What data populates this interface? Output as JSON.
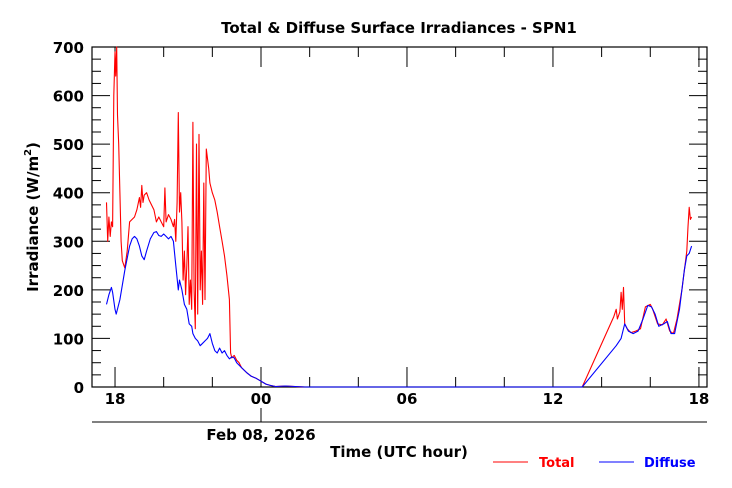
{
  "chart_data": {
    "type": "line",
    "title": "Total & Diffuse Surface Irradiances - SPN1",
    "xlabel": "Time (UTC hour)",
    "ylabel": "Irradiance (W/m",
    "ylabel_superscript": "2",
    "ylabel_suffix": ")",
    "date_label": "Feb 08, 2026",
    "xlim_hours": [
      -7,
      18.3
    ],
    "ylim": [
      0,
      700
    ],
    "x_ticks": [
      {
        "hour": -6,
        "label": "18"
      },
      {
        "hour": 0,
        "label": "00"
      },
      {
        "hour": 6,
        "label": "06"
      },
      {
        "hour": 12,
        "label": "12"
      },
      {
        "hour": 18,
        "label": "18"
      }
    ],
    "y_ticks": [
      0,
      100,
      200,
      300,
      400,
      500,
      600,
      700
    ],
    "y_minor_step": 25,
    "x_minor_step_hours": 2,
    "grid": false,
    "legend_position": "bottom-right",
    "series": [
      {
        "name": "Total",
        "color": "#ff0000",
        "points": [
          [
            -6.35,
            380
          ],
          [
            -6.3,
            300
          ],
          [
            -6.25,
            350
          ],
          [
            -6.2,
            310
          ],
          [
            -6.15,
            340
          ],
          [
            -6.1,
            330
          ],
          [
            -6.05,
            600
          ],
          [
            -6.0,
            690
          ],
          [
            -5.97,
            640
          ],
          [
            -5.93,
            700
          ],
          [
            -5.9,
            560
          ],
          [
            -5.85,
            500
          ],
          [
            -5.8,
            400
          ],
          [
            -5.75,
            300
          ],
          [
            -5.7,
            260
          ],
          [
            -5.6,
            245
          ],
          [
            -5.5,
            280
          ],
          [
            -5.4,
            340
          ],
          [
            -5.3,
            345
          ],
          [
            -5.2,
            350
          ],
          [
            -5.1,
            365
          ],
          [
            -5.0,
            390
          ],
          [
            -4.95,
            370
          ],
          [
            -4.9,
            415
          ],
          [
            -4.85,
            380
          ],
          [
            -4.8,
            395
          ],
          [
            -4.7,
            400
          ],
          [
            -4.6,
            385
          ],
          [
            -4.5,
            375
          ],
          [
            -4.4,
            365
          ],
          [
            -4.3,
            340
          ],
          [
            -4.2,
            350
          ],
          [
            -4.1,
            340
          ],
          [
            -4.0,
            330
          ],
          [
            -3.95,
            410
          ],
          [
            -3.9,
            340
          ],
          [
            -3.8,
            355
          ],
          [
            -3.7,
            345
          ],
          [
            -3.6,
            330
          ],
          [
            -3.55,
            345
          ],
          [
            -3.5,
            300
          ],
          [
            -3.45,
            380
          ],
          [
            -3.4,
            565
          ],
          [
            -3.35,
            360
          ],
          [
            -3.3,
            400
          ],
          [
            -3.25,
            340
          ],
          [
            -3.2,
            220
          ],
          [
            -3.15,
            280
          ],
          [
            -3.1,
            190
          ],
          [
            -3.05,
            250
          ],
          [
            -3.0,
            330
          ],
          [
            -2.95,
            170
          ],
          [
            -2.9,
            220
          ],
          [
            -2.85,
            160
          ],
          [
            -2.8,
            545
          ],
          [
            -2.75,
            200
          ],
          [
            -2.7,
            120
          ],
          [
            -2.65,
            500
          ],
          [
            -2.6,
            150
          ],
          [
            -2.55,
            520
          ],
          [
            -2.5,
            200
          ],
          [
            -2.45,
            280
          ],
          [
            -2.4,
            170
          ],
          [
            -2.35,
            420
          ],
          [
            -2.3,
            180
          ],
          [
            -2.25,
            490
          ],
          [
            -2.2,
            470
          ],
          [
            -2.15,
            450
          ],
          [
            -2.1,
            420
          ],
          [
            -2.0,
            400
          ],
          [
            -1.9,
            385
          ],
          [
            -1.8,
            360
          ],
          [
            -1.7,
            330
          ],
          [
            -1.6,
            300
          ],
          [
            -1.5,
            270
          ],
          [
            -1.4,
            230
          ],
          [
            -1.3,
            180
          ],
          [
            -1.25,
            70
          ],
          [
            -1.2,
            60
          ],
          [
            -1.1,
            65
          ],
          [
            -1.0,
            55
          ],
          [
            -0.9,
            50
          ],
          [
            -0.8,
            40
          ],
          [
            -0.6,
            30
          ],
          [
            -0.4,
            22
          ],
          [
            -0.2,
            18
          ],
          [
            0.0,
            12
          ],
          [
            0.2,
            6
          ],
          [
            0.4,
            3
          ],
          [
            0.6,
            1
          ],
          [
            1.0,
            2
          ],
          [
            1.4,
            1
          ],
          [
            1.8,
            0
          ],
          [
            3.0,
            0
          ],
          [
            6.0,
            0
          ],
          [
            9.0,
            0
          ],
          [
            12.0,
            0
          ],
          [
            13.2,
            0
          ],
          [
            14.5,
            145
          ],
          [
            14.6,
            160
          ],
          [
            14.65,
            140
          ],
          [
            14.75,
            155
          ],
          [
            14.8,
            195
          ],
          [
            14.85,
            160
          ],
          [
            14.9,
            205
          ],
          [
            14.95,
            130
          ],
          [
            15.05,
            120
          ],
          [
            15.2,
            112
          ],
          [
            15.4,
            115
          ],
          [
            15.6,
            120
          ],
          [
            15.8,
            165
          ],
          [
            16.0,
            170
          ],
          [
            16.1,
            160
          ],
          [
            16.3,
            130
          ],
          [
            16.5,
            128
          ],
          [
            16.65,
            140
          ],
          [
            16.8,
            115
          ],
          [
            16.95,
            110
          ],
          [
            17.1,
            140
          ],
          [
            17.3,
            200
          ],
          [
            17.5,
            280
          ],
          [
            17.55,
            330
          ],
          [
            17.6,
            370
          ],
          [
            17.65,
            345
          ],
          [
            17.7,
            350
          ]
        ]
      },
      {
        "name": "Diffuse",
        "color": "#0000ff",
        "points": [
          [
            -6.35,
            170
          ],
          [
            -6.25,
            190
          ],
          [
            -6.15,
            205
          ],
          [
            -6.1,
            195
          ],
          [
            -6.0,
            160
          ],
          [
            -5.95,
            150
          ],
          [
            -5.8,
            180
          ],
          [
            -5.6,
            240
          ],
          [
            -5.4,
            290
          ],
          [
            -5.3,
            305
          ],
          [
            -5.2,
            310
          ],
          [
            -5.1,
            305
          ],
          [
            -5.0,
            290
          ],
          [
            -4.9,
            270
          ],
          [
            -4.8,
            262
          ],
          [
            -4.7,
            280
          ],
          [
            -4.55,
            305
          ],
          [
            -4.4,
            318
          ],
          [
            -4.3,
            320
          ],
          [
            -4.2,
            312
          ],
          [
            -4.1,
            310
          ],
          [
            -4.0,
            315
          ],
          [
            -3.9,
            310
          ],
          [
            -3.8,
            305
          ],
          [
            -3.7,
            310
          ],
          [
            -3.6,
            300
          ],
          [
            -3.5,
            250
          ],
          [
            -3.4,
            200
          ],
          [
            -3.35,
            220
          ],
          [
            -3.25,
            200
          ],
          [
            -3.15,
            170
          ],
          [
            -3.05,
            160
          ],
          [
            -2.95,
            130
          ],
          [
            -2.85,
            125
          ],
          [
            -2.8,
            110
          ],
          [
            -2.7,
            100
          ],
          [
            -2.6,
            95
          ],
          [
            -2.5,
            85
          ],
          [
            -2.4,
            90
          ],
          [
            -2.3,
            95
          ],
          [
            -2.2,
            100
          ],
          [
            -2.1,
            110
          ],
          [
            -2.0,
            90
          ],
          [
            -1.9,
            75
          ],
          [
            -1.8,
            70
          ],
          [
            -1.7,
            80
          ],
          [
            -1.6,
            70
          ],
          [
            -1.5,
            75
          ],
          [
            -1.4,
            65
          ],
          [
            -1.3,
            58
          ],
          [
            -1.2,
            62
          ],
          [
            -1.1,
            60
          ],
          [
            -1.0,
            50
          ],
          [
            -0.8,
            40
          ],
          [
            -0.6,
            30
          ],
          [
            -0.4,
            22
          ],
          [
            -0.2,
            18
          ],
          [
            0.0,
            12
          ],
          [
            0.2,
            6
          ],
          [
            0.4,
            3
          ],
          [
            0.6,
            1
          ],
          [
            1.0,
            2
          ],
          [
            1.4,
            1
          ],
          [
            1.8,
            0
          ],
          [
            3.0,
            0
          ],
          [
            6.0,
            0
          ],
          [
            9.0,
            0
          ],
          [
            12.0,
            0
          ],
          [
            13.2,
            0
          ],
          [
            14.6,
            85
          ],
          [
            14.8,
            100
          ],
          [
            14.95,
            130
          ],
          [
            15.1,
            115
          ],
          [
            15.3,
            110
          ],
          [
            15.5,
            115
          ],
          [
            15.7,
            140
          ],
          [
            15.9,
            168
          ],
          [
            16.05,
            165
          ],
          [
            16.2,
            150
          ],
          [
            16.35,
            125
          ],
          [
            16.55,
            130
          ],
          [
            16.7,
            135
          ],
          [
            16.85,
            110
          ],
          [
            17.0,
            110
          ],
          [
            17.2,
            160
          ],
          [
            17.4,
            240
          ],
          [
            17.5,
            270
          ],
          [
            17.6,
            275
          ],
          [
            17.7,
            290
          ]
        ]
      }
    ]
  }
}
